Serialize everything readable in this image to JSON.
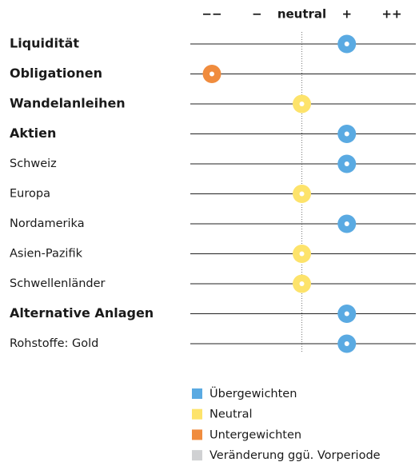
{
  "chart_data": {
    "type": "dot",
    "categories": [
      "Liquidität",
      "Obligationen",
      "Wandelanleihen",
      "Aktien",
      "Schweiz",
      "Europa",
      "Nordamerika",
      "Asien-Pazifik",
      "Schwellenländer",
      "Alternative Anlagen",
      "Rohstoffe: Gold"
    ],
    "bold": [
      true,
      true,
      true,
      true,
      false,
      false,
      false,
      false,
      false,
      true,
      false
    ],
    "values": [
      1,
      -2,
      0,
      1,
      1,
      0,
      1,
      0,
      0,
      1,
      1
    ],
    "colors": [
      "#5aaae2",
      "#f08c3e",
      "#fde36b",
      "#5aaae2",
      "#5aaae2",
      "#fde36b",
      "#5aaae2",
      "#fde36b",
      "#fde36b",
      "#5aaae2",
      "#5aaae2"
    ],
    "xlim": [
      -2,
      2
    ],
    "xticks": [
      {
        "value": -2,
        "label": "−−"
      },
      {
        "value": -1,
        "label": "−"
      },
      {
        "value": 0,
        "label": "neutral"
      },
      {
        "value": 1,
        "label": "+"
      },
      {
        "value": 2,
        "label": "++"
      }
    ],
    "legend": [
      {
        "name": "Übergewichten",
        "color": "#5aaae2"
      },
      {
        "name": "Neutral",
        "color": "#fde36b"
      },
      {
        "name": "Untergewichten",
        "color": "#f08c3e"
      },
      {
        "name": "Veränderung ggü. Vorperiode",
        "color": "#d0d1d3"
      }
    ]
  }
}
